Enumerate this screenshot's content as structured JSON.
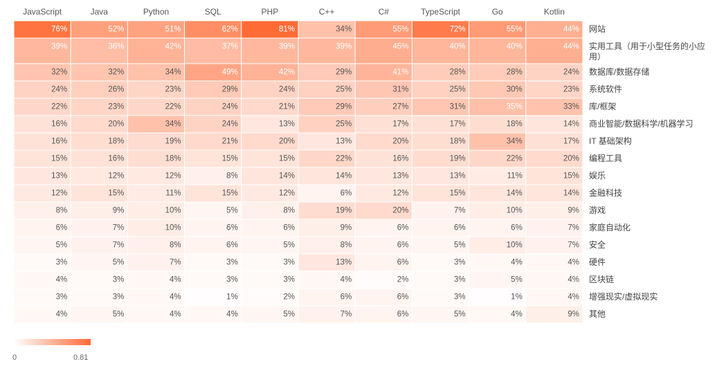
{
  "chart_data": {
    "type": "heatmap",
    "columns": [
      "JavaScript",
      "Java",
      "Python",
      "SQL",
      "PHP",
      "C++",
      "C#",
      "TypeScript",
      "Go",
      "Kotlin"
    ],
    "rows": [
      {
        "label": "网站",
        "values": [
          76,
          52,
          51,
          62,
          81,
          34,
          55,
          72,
          55,
          44
        ]
      },
      {
        "label": "实用工具（用于小型任务的小应用）",
        "label_lines": [
          "实用工具（用于小型任务的小应",
          "用）"
        ],
        "values": [
          39,
          36,
          42,
          37,
          39,
          39,
          45,
          40,
          40,
          44
        ]
      },
      {
        "label": "数据库/数据存储",
        "values": [
          32,
          32,
          34,
          49,
          42,
          29,
          41,
          28,
          28,
          24
        ]
      },
      {
        "label": "系统软件",
        "values": [
          24,
          26,
          23,
          29,
          24,
          25,
          31,
          25,
          30,
          23
        ]
      },
      {
        "label": "库/框架",
        "values": [
          22,
          23,
          22,
          24,
          21,
          29,
          27,
          31,
          35,
          33
        ]
      },
      {
        "label": "商业智能/数据科学/机器学习",
        "values": [
          16,
          20,
          34,
          24,
          13,
          25,
          17,
          17,
          18,
          14
        ]
      },
      {
        "label": "IT 基础架构",
        "values": [
          16,
          18,
          19,
          21,
          20,
          13,
          20,
          18,
          34,
          17
        ]
      },
      {
        "label": "编程工具",
        "values": [
          15,
          16,
          18,
          15,
          15,
          22,
          16,
          19,
          22,
          20
        ]
      },
      {
        "label": "娱乐",
        "values": [
          13,
          12,
          12,
          8,
          14,
          14,
          13,
          13,
          11,
          15
        ]
      },
      {
        "label": "金融科技",
        "values": [
          12,
          15,
          11,
          15,
          12,
          6,
          12,
          15,
          14,
          14
        ]
      },
      {
        "label": "游戏",
        "values": [
          8,
          9,
          10,
          5,
          8,
          19,
          20,
          7,
          10,
          9
        ]
      },
      {
        "label": "家庭自动化",
        "values": [
          6,
          7,
          10,
          6,
          6,
          9,
          6,
          6,
          6,
          7
        ]
      },
      {
        "label": "安全",
        "values": [
          5,
          7,
          8,
          6,
          5,
          8,
          6,
          5,
          10,
          7
        ]
      },
      {
        "label": "硬件",
        "values": [
          3,
          5,
          7,
          3,
          3,
          13,
          6,
          3,
          4,
          4
        ]
      },
      {
        "label": "区块链",
        "values": [
          4,
          3,
          4,
          3,
          3,
          4,
          2,
          3,
          5,
          4
        ]
      },
      {
        "label": "增强现实/虚拟现实",
        "values": [
          3,
          3,
          4,
          1,
          2,
          6,
          6,
          3,
          1,
          4
        ]
      },
      {
        "label": "其他",
        "values": [
          4,
          5,
          4,
          4,
          5,
          7,
          6,
          5,
          4,
          9
        ]
      }
    ],
    "value_suffix": "%",
    "color_scale": {
      "min": 0,
      "max": 0.81,
      "min_label": "0",
      "max_label": "0.81",
      "low_color": "#ffffff",
      "high_color": "#ff6b35"
    }
  }
}
